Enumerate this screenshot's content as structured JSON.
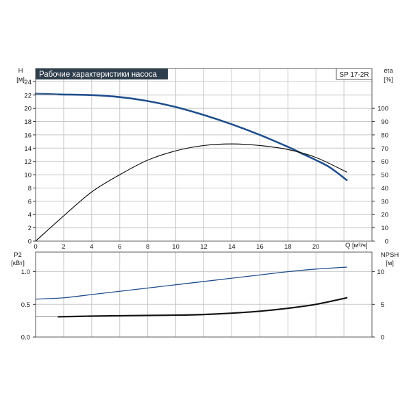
{
  "chart_data": [
    {
      "type": "line",
      "title": "Рабочие характеристики насоса",
      "model": "SP 17-2R",
      "xlabel": "Q [м³/ч]",
      "xlim": [
        0,
        24
      ],
      "x_ticks": [
        0,
        2,
        4,
        6,
        8,
        10,
        12,
        14,
        16,
        18,
        20
      ],
      "y_left": {
        "label_top": "H",
        "label_unit": "[м]",
        "lim": [
          0,
          26
        ],
        "ticks": [
          0,
          2,
          4,
          6,
          8,
          10,
          12,
          14,
          16,
          18,
          20,
          22,
          24
        ]
      },
      "y_right": {
        "label_top": "eta",
        "label_unit": "[%]",
        "lim": [
          0,
          130
        ],
        "ticks": [
          0,
          10,
          20,
          30,
          40,
          50,
          60,
          70,
          80,
          90,
          100
        ]
      },
      "grid": true,
      "series": [
        {
          "name": "H",
          "axis": "left",
          "color": "#1f4e8c",
          "width": 2.6,
          "x": [
            0,
            1.6,
            4,
            6,
            8,
            10,
            12,
            14,
            16,
            18,
            19,
            20,
            21,
            22.2
          ],
          "y": [
            22.2,
            22.1,
            22.0,
            21.7,
            21.1,
            20.2,
            19.0,
            17.6,
            16.0,
            14.2,
            13.2,
            12.2,
            11.1,
            9.2
          ]
        },
        {
          "name": "eta",
          "axis": "right",
          "color": "#111111",
          "width": 1.2,
          "x": [
            0,
            2,
            4,
            6,
            8,
            10,
            12,
            14,
            16,
            18,
            20,
            22.2
          ],
          "y": [
            0,
            19,
            37,
            50,
            61,
            68,
            72,
            73.2,
            72,
            69,
            63,
            52
          ]
        }
      ]
    },
    {
      "type": "line",
      "xlim": [
        0,
        24
      ],
      "y_left": {
        "label_top": "P2",
        "label_unit": "[кВт]",
        "lim": [
          0,
          1.3
        ],
        "ticks": [
          "0.0",
          "0.5",
          "1.0"
        ],
        "tick_values": [
          0,
          0.5,
          1.0
        ]
      },
      "y_right": {
        "label_top": "NPSH",
        "label_unit": "[м]",
        "lim": [
          0,
          13
        ],
        "ticks": [
          0,
          5,
          10
        ]
      },
      "grid": true,
      "series": [
        {
          "name": "P2",
          "axis": "left",
          "color": "#1f4e8c",
          "width": 1.3,
          "x": [
            0,
            2,
            4,
            6,
            8,
            10,
            12,
            14,
            16,
            18,
            20,
            22.2
          ],
          "y": [
            0.58,
            0.6,
            0.65,
            0.7,
            0.75,
            0.8,
            0.85,
            0.9,
            0.95,
            1.0,
            1.04,
            1.07
          ]
        },
        {
          "name": "NPSH",
          "axis": "right",
          "color": "#111111",
          "width": 2.2,
          "x": [
            1.6,
            4,
            6,
            8,
            10,
            12,
            14,
            16,
            18,
            20,
            22.2
          ],
          "y": [
            3.1,
            3.2,
            3.25,
            3.3,
            3.35,
            3.45,
            3.65,
            3.95,
            4.4,
            5.0,
            6.0
          ]
        },
        {
          "name": "NPSH-start",
          "axis": "right",
          "color": "#8a8a8a",
          "width": 1,
          "x": [
            0,
            1.6
          ],
          "y": [
            3.1,
            3.1
          ]
        }
      ]
    }
  ]
}
